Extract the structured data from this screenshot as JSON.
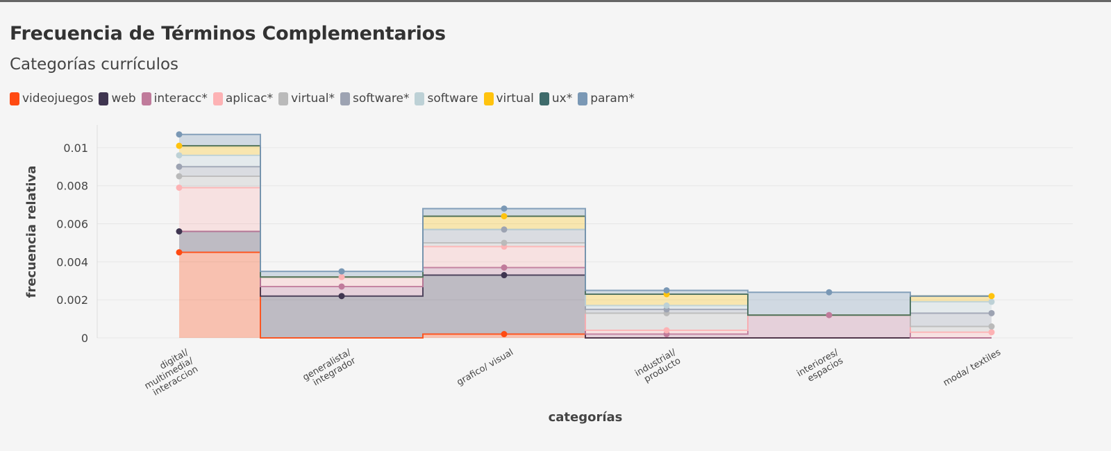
{
  "title": "Frecuencia de Términos Complementarios",
  "subtitle": "Categorías currículos",
  "chart_data": {
    "type": "area",
    "step": true,
    "stacked": true,
    "xlabel": "categorías",
    "ylabel": "frecuencia relativa",
    "ylim": [
      0,
      0.0112
    ],
    "yticks": [
      0,
      0.002,
      0.004,
      0.006,
      0.008,
      0.01
    ],
    "ytick_labels": [
      "0",
      "0.002",
      "0.004",
      "0.006",
      "0.008",
      "0.01"
    ],
    "grid": true,
    "legend_position": "top-left",
    "categories": [
      [
        "digital/",
        "multimedia/",
        "interaccion"
      ],
      [
        "generalista/",
        "integrador"
      ],
      [
        "grafico/ visual"
      ],
      [
        "industrial/",
        "producto"
      ],
      [
        "interiores/",
        "espacios"
      ],
      [
        "moda/ textiles"
      ]
    ],
    "series": [
      {
        "name": "videojuegos",
        "color": "#ff4a12",
        "values": [
          0.0045,
          0.0,
          0.0002,
          0.0,
          0.0,
          0.0
        ]
      },
      {
        "name": "web",
        "color": "#3f3550",
        "values": [
          0.0011,
          0.0022,
          0.0031,
          0.0,
          0.0,
          0.0
        ]
      },
      {
        "name": "interacc*",
        "color": "#c07b9b",
        "values": [
          0.0,
          0.0005,
          0.0004,
          0.0002,
          0.0012,
          0.0
        ]
      },
      {
        "name": "aplicac*",
        "color": "#fdb2b4",
        "values": [
          0.0023,
          0.0005,
          0.0011,
          0.0002,
          0.0,
          0.0003
        ]
      },
      {
        "name": "virtual*",
        "color": "#bababa",
        "values": [
          0.0006,
          0.0,
          0.0002,
          0.0009,
          0.0,
          0.0003
        ]
      },
      {
        "name": "software*",
        "color": "#9da3b2",
        "values": [
          0.0005,
          0.0,
          0.0007,
          0.0002,
          0.0,
          0.0007
        ]
      },
      {
        "name": "software",
        "color": "#bdd1d6",
        "values": [
          0.0006,
          0.0,
          0.0,
          0.0002,
          0.0,
          0.0006
        ]
      },
      {
        "name": "virtual",
        "color": "#ffc30e",
        "values": [
          0.0005,
          0.0,
          0.0007,
          0.0006,
          0.0,
          0.0003
        ]
      },
      {
        "name": "ux*",
        "color": "#3f6b6b",
        "values": [
          0.0,
          0.0,
          0.0,
          0.0,
          0.0,
          0.0
        ]
      },
      {
        "name": "param*",
        "color": "#7a98b5",
        "values": [
          0.0006,
          0.0003,
          0.0004,
          0.0002,
          0.0012,
          0.0
        ]
      }
    ]
  }
}
